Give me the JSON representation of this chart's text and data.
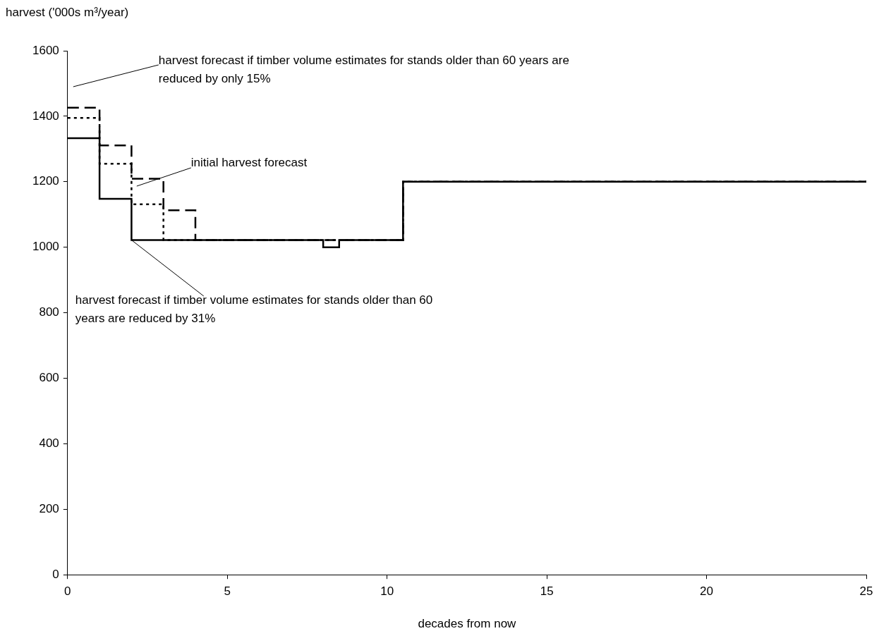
{
  "chart_data": {
    "type": "step",
    "xlabel": "decades from now",
    "ylabel": "harvest ('000s m³/year)",
    "xlim": [
      0,
      25
    ],
    "xticks": [
      0,
      5,
      10,
      15,
      20,
      25
    ],
    "ylim": [
      0,
      1600
    ],
    "yticks": [
      0,
      200,
      400,
      600,
      800,
      1000,
      1200,
      1400,
      1600
    ],
    "grid": false,
    "legend": false,
    "marker": "none",
    "series": [
      {
        "color": "#000000",
        "line_style": "dashed",
        "x": [
          0,
          1,
          2,
          3,
          4,
          10.5,
          25
        ],
        "values": [
          1426,
          1311,
          1209,
          1113,
          1022,
          1200,
          1200
        ]
      },
      {
        "color": "#000000",
        "line_style": "dotted",
        "x": [
          0,
          1,
          2,
          3,
          10.5,
          25
        ],
        "values": [
          1395,
          1255,
          1131,
          1022,
          1200,
          1200
        ]
      },
      {
        "color": "#000000",
        "line_style": "solid",
        "x": [
          0,
          1,
          2,
          8,
          8.5,
          10.5,
          25
        ],
        "values": [
          1333,
          1148,
          1022,
          1000,
          1022,
          1200,
          1200
        ]
      }
    ],
    "annotations": [
      "harvest forecast if timber volume estimates for stands older than 60 years are reduced by only 15%",
      "initial harvest forecast",
      {
        "text": "harvest forecast if timber volume estimates for stands older than 60 years are reduced by 31%",
        "x": 2,
        "y": 1022
      }
    ]
  }
}
